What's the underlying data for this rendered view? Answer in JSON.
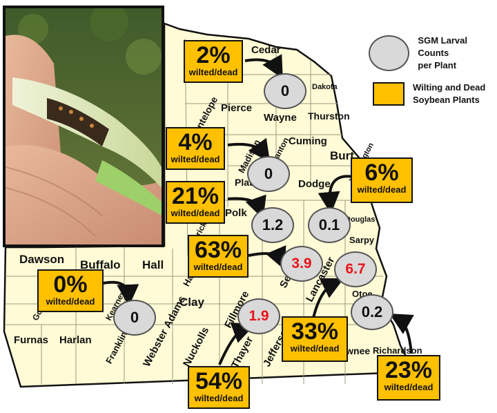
{
  "legend": {
    "counts_label": "SGM Larval Counts\nper Plant",
    "wilting_label": "Wilting and Dead\nSoybean Plants",
    "oval_color": "#D9D9D9",
    "box_color": "#FFC000"
  },
  "counties": [
    {
      "name": "Cedar"
    },
    {
      "name": "Pierce"
    },
    {
      "name": "Wayne"
    },
    {
      "name": "Dakota"
    },
    {
      "name": "Thurston"
    },
    {
      "name": "Cuming"
    },
    {
      "name": "Burt"
    },
    {
      "name": "Dodge"
    },
    {
      "name": "Dawson"
    },
    {
      "name": "Buffalo"
    },
    {
      "name": "Hall"
    },
    {
      "name": "Clay"
    },
    {
      "name": "Furnas"
    },
    {
      "name": "Harlan"
    },
    {
      "name": "Webster"
    },
    {
      "name": "Nuckolls"
    },
    {
      "name": "Fillmore"
    },
    {
      "name": "Thayer"
    },
    {
      "name": "Jefferson"
    },
    {
      "name": "Pawnee"
    },
    {
      "name": "Otoe"
    },
    {
      "name": "Sarpy"
    },
    {
      "name": "Polk"
    },
    {
      "name": "Platte"
    },
    {
      "name": "Antelope"
    },
    {
      "name": "Madison"
    },
    {
      "name": "Stanton"
    },
    {
      "name": "Franklin"
    },
    {
      "name": "Kearney"
    },
    {
      "name": "Adams"
    },
    {
      "name": "Hamilton"
    },
    {
      "name": "Seward"
    },
    {
      "name": "Lancaster"
    },
    {
      "name": "Richardson"
    },
    {
      "name": "Douglas"
    },
    {
      "name": "Washington"
    },
    {
      "name": "Merrick"
    },
    {
      "name": "Gosper"
    }
  ],
  "wilt_boxes": [
    {
      "percent": "2%",
      "sub": "wilted/dead"
    },
    {
      "percent": "4%",
      "sub": "wilted/dead"
    },
    {
      "percent": "21%",
      "sub": "wilted/dead"
    },
    {
      "percent": "6%",
      "sub": "wilted/dead"
    },
    {
      "percent": "63%",
      "sub": "wilted/dead"
    },
    {
      "percent": "0%",
      "sub": "wilted/dead"
    },
    {
      "percent": "33%",
      "sub": "wilted/dead"
    },
    {
      "percent": "54%",
      "sub": "wilted/dead"
    },
    {
      "percent": "23%",
      "sub": "wilted/dead"
    }
  ],
  "larval_counts": [
    {
      "value": "0",
      "high": false
    },
    {
      "value": "0",
      "high": false
    },
    {
      "value": "1.2",
      "high": false
    },
    {
      "value": "0.1",
      "high": false
    },
    {
      "value": "3.9",
      "high": true
    },
    {
      "value": "6.7",
      "high": true
    },
    {
      "value": "0",
      "high": false
    },
    {
      "value": "1.9",
      "high": true
    },
    {
      "value": "0.2",
      "high": false
    }
  ],
  "colors": {
    "map_fill": "#FFFBD6",
    "high_value": "#E8141B",
    "arrow": "#111111"
  }
}
